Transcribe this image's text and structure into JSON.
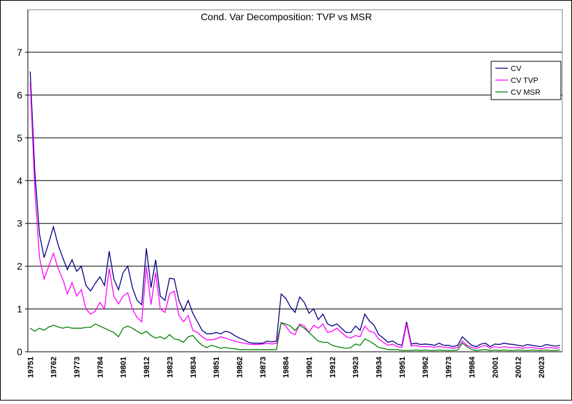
{
  "chart_data": {
    "type": "line",
    "title": "Cond. Var Decomposition: TVP vs MSR",
    "categories": [
      "19751",
      null,
      null,
      null,
      null,
      "19762",
      null,
      null,
      null,
      null,
      "19773",
      null,
      null,
      null,
      null,
      "19784",
      null,
      null,
      null,
      null,
      "19801",
      null,
      null,
      null,
      null,
      "19812",
      null,
      null,
      null,
      null,
      "19823",
      null,
      null,
      null,
      null,
      "19834",
      null,
      null,
      null,
      null,
      "19851",
      null,
      null,
      null,
      null,
      "19862",
      null,
      null,
      null,
      null,
      "19873",
      null,
      null,
      null,
      null,
      "19884",
      null,
      null,
      null,
      null,
      "19901",
      null,
      null,
      null,
      null,
      "19912",
      null,
      null,
      null,
      null,
      "19923",
      null,
      null,
      null,
      null,
      "19934",
      null,
      null,
      null,
      null,
      "19951",
      null,
      null,
      null,
      null,
      "19962",
      null,
      null,
      null,
      null,
      "19973",
      null,
      null,
      null,
      null,
      "19984",
      null,
      null,
      null,
      null,
      "20001",
      null,
      null,
      null,
      null,
      "20012",
      null,
      null,
      null,
      null,
      "20023",
      null,
      null,
      null,
      null
    ],
    "series": [
      {
        "name": "CV",
        "color": "#000080",
        "values": [
          6.55,
          4.2,
          2.75,
          2.2,
          2.55,
          2.92,
          2.5,
          2.2,
          1.92,
          2.15,
          1.88,
          2.0,
          1.55,
          1.42,
          1.6,
          1.75,
          1.55,
          2.35,
          1.7,
          1.45,
          1.85,
          2.0,
          1.5,
          1.2,
          1.1,
          2.42,
          1.5,
          2.15,
          1.3,
          1.2,
          1.72,
          1.7,
          1.2,
          0.95,
          1.2,
          0.9,
          0.7,
          0.5,
          0.42,
          0.42,
          0.45,
          0.42,
          0.48,
          0.45,
          0.38,
          0.32,
          0.28,
          0.22,
          0.2,
          0.2,
          0.2,
          0.25,
          0.23,
          0.25,
          1.35,
          1.25,
          1.05,
          0.92,
          1.28,
          1.15,
          0.9,
          1.0,
          0.75,
          0.88,
          0.65,
          0.6,
          0.65,
          0.55,
          0.45,
          0.45,
          0.6,
          0.5,
          0.88,
          0.72,
          0.62,
          0.4,
          0.32,
          0.22,
          0.25,
          0.18,
          0.15,
          0.7,
          0.18,
          0.2,
          0.17,
          0.18,
          0.17,
          0.15,
          0.2,
          0.15,
          0.15,
          0.12,
          0.15,
          0.35,
          0.25,
          0.15,
          0.12,
          0.18,
          0.2,
          0.12,
          0.18,
          0.17,
          0.2,
          0.18,
          0.17,
          0.15,
          0.13,
          0.17,
          0.15,
          0.13,
          0.12,
          0.17,
          0.15,
          0.13,
          0.15
        ]
      },
      {
        "name": "CV TVP",
        "color": "#ff00ff",
        "values": [
          6.3,
          3.8,
          2.2,
          1.7,
          2.0,
          2.3,
          1.95,
          1.7,
          1.35,
          1.62,
          1.3,
          1.45,
          1.0,
          0.88,
          0.95,
          1.15,
          1.0,
          1.95,
          1.3,
          1.12,
          1.3,
          1.38,
          1.0,
          0.8,
          0.7,
          1.98,
          1.1,
          1.85,
          1.0,
          0.92,
          1.35,
          1.42,
          0.85,
          0.7,
          0.85,
          0.5,
          0.45,
          0.35,
          0.28,
          0.28,
          0.3,
          0.35,
          0.32,
          0.28,
          0.25,
          0.22,
          0.2,
          0.18,
          0.17,
          0.17,
          0.18,
          0.2,
          0.18,
          0.2,
          0.68,
          0.6,
          0.45,
          0.4,
          0.65,
          0.6,
          0.45,
          0.62,
          0.55,
          0.65,
          0.45,
          0.48,
          0.55,
          0.45,
          0.35,
          0.32,
          0.38,
          0.35,
          0.6,
          0.48,
          0.45,
          0.3,
          0.22,
          0.15,
          0.18,
          0.12,
          0.1,
          0.65,
          0.13,
          0.15,
          0.12,
          0.12,
          0.12,
          0.1,
          0.13,
          0.1,
          0.1,
          0.08,
          0.1,
          0.25,
          0.15,
          0.1,
          0.08,
          0.12,
          0.15,
          0.08,
          0.12,
          0.1,
          0.12,
          0.1,
          0.1,
          0.1,
          0.08,
          0.1,
          0.1,
          0.08,
          0.07,
          0.1,
          0.1,
          0.08,
          0.1
        ]
      },
      {
        "name": "CV MSR",
        "color": "#008000",
        "values": [
          0.55,
          0.48,
          0.55,
          0.5,
          0.58,
          0.62,
          0.58,
          0.55,
          0.58,
          0.55,
          0.55,
          0.55,
          0.57,
          0.57,
          0.65,
          0.6,
          0.55,
          0.5,
          0.45,
          0.35,
          0.55,
          0.6,
          0.55,
          0.48,
          0.42,
          0.48,
          0.38,
          0.32,
          0.35,
          0.3,
          0.4,
          0.3,
          0.28,
          0.22,
          0.35,
          0.38,
          0.25,
          0.15,
          0.1,
          0.15,
          0.12,
          0.08,
          0.1,
          0.08,
          0.07,
          0.05,
          0.05,
          0.05,
          0.05,
          0.05,
          0.05,
          0.05,
          0.05,
          0.05,
          0.68,
          0.65,
          0.6,
          0.5,
          0.62,
          0.55,
          0.45,
          0.35,
          0.25,
          0.22,
          0.22,
          0.15,
          0.12,
          0.1,
          0.08,
          0.1,
          0.18,
          0.15,
          0.3,
          0.25,
          0.18,
          0.1,
          0.08,
          0.05,
          0.05,
          0.05,
          0.03,
          0.03,
          0.03,
          0.04,
          0.03,
          0.04,
          0.03,
          0.03,
          0.04,
          0.03,
          0.03,
          0.03,
          0.04,
          0.2,
          0.12,
          0.05,
          0.03,
          0.04,
          0.05,
          0.03,
          0.04,
          0.03,
          0.04,
          0.03,
          0.03,
          0.04,
          0.03,
          0.03,
          0.04,
          0.03,
          0.03,
          0.04,
          0.03,
          0.03,
          0.04
        ]
      }
    ],
    "ylim": [
      0,
      7
    ],
    "yticks": [
      0,
      1,
      2,
      3,
      4,
      5,
      6,
      7
    ],
    "grid": true,
    "legend": "top-right"
  }
}
